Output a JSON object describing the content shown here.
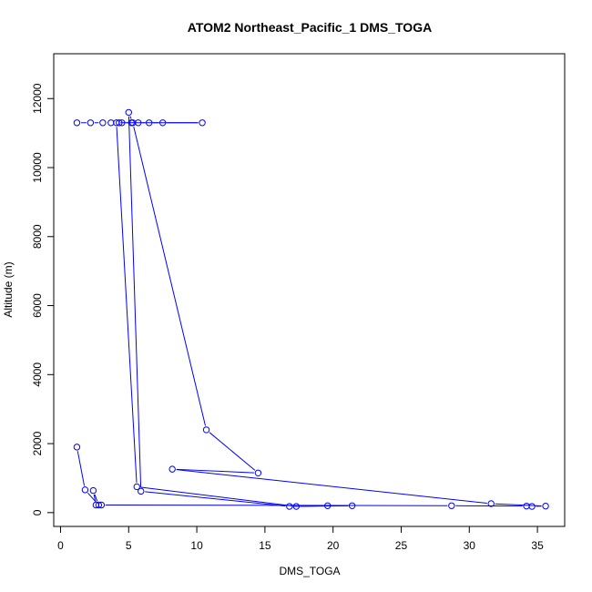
{
  "chart_data": {
    "type": "line",
    "title": "ATOM2 Northeast_Pacific_1 DMS_TOGA",
    "xlabel": "DMS_TOGA",
    "ylabel": "Altitude (m)",
    "xlim": [
      -0.5,
      37
    ],
    "ylim": [
      -400,
      13300
    ],
    "x_ticks": [
      0,
      5,
      10,
      15,
      20,
      25,
      30,
      35
    ],
    "y_ticks": [
      0,
      2000,
      4000,
      6000,
      8000,
      10000,
      12000
    ],
    "x_tick_labels": [
      "0",
      "5",
      "10",
      "15",
      "20",
      "25",
      "30",
      "35"
    ],
    "y_tick_labels": [
      "0",
      "2000",
      "4000",
      "6000",
      "8000",
      "10000",
      "12000"
    ],
    "grid": false,
    "color": "#0000ff",
    "series": [
      {
        "marker": "open-circle",
        "points": [
          {
            "x": 1.2,
            "y": 11300
          },
          {
            "x": 2.2,
            "y": 11300
          },
          {
            "x": 3.1,
            "y": 11300
          },
          {
            "x": 3.7,
            "y": 11300
          },
          {
            "x": 4.3,
            "y": 11300
          },
          {
            "x": 4.5,
            "y": 11300
          },
          {
            "x": 5.2,
            "y": 11300
          },
          {
            "x": 5.7,
            "y": 11300
          },
          {
            "x": 6.5,
            "y": 11300
          },
          {
            "x": 7.5,
            "y": 11300
          },
          {
            "x": 10.4,
            "y": 11300
          },
          {
            "x": 4.1,
            "y": 11300
          },
          {
            "x": 5.6,
            "y": 750
          },
          {
            "x": 17.3,
            "y": 180
          },
          {
            "x": 21.4,
            "y": 200
          },
          {
            "x": 19.6,
            "y": 200
          },
          {
            "x": 16.8,
            "y": 180
          },
          {
            "x": 5.9,
            "y": 620
          },
          {
            "x": 5.0,
            "y": 11600
          },
          {
            "x": 5.3,
            "y": 11300
          },
          {
            "x": 10.7,
            "y": 2400
          },
          {
            "x": 14.5,
            "y": 1150
          },
          {
            "x": 8.2,
            "y": 1260
          },
          {
            "x": 31.6,
            "y": 260
          },
          {
            "x": 35.6,
            "y": 190
          },
          {
            "x": 34.6,
            "y": 180
          },
          {
            "x": 34.2,
            "y": 190
          },
          {
            "x": 28.7,
            "y": 200
          },
          {
            "x": 3.0,
            "y": 220
          },
          {
            "x": 2.6,
            "y": 220
          },
          {
            "x": 2.4,
            "y": 640
          },
          {
            "x": 2.8,
            "y": 220
          },
          {
            "x": 1.8,
            "y": 660
          },
          {
            "x": 1.2,
            "y": 1900
          }
        ]
      }
    ]
  }
}
